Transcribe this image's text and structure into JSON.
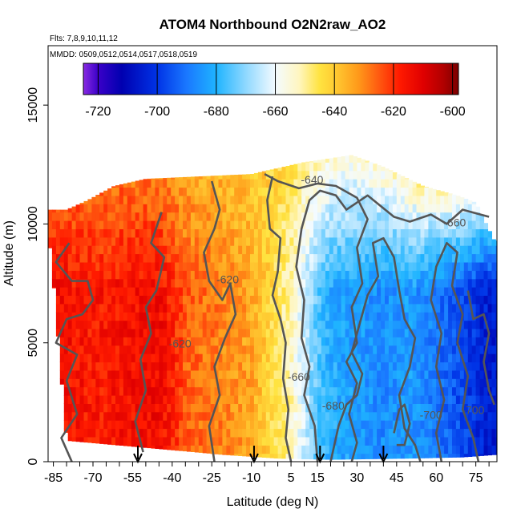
{
  "chart_data": {
    "type": "heatmap",
    "title": "ATOM4 Northbound O2N2raw_AO2",
    "subtitle_flights": "Flts: 7,8,9,10,11,12",
    "subtitle_dates": "MMDD: 0509,0512,0514,0517,0518,0519",
    "xlabel": "Latitude (deg N)",
    "ylabel": "Altitude (m)",
    "xlim": [
      -87,
      83
    ],
    "ylim": [
      0,
      17500
    ],
    "x_ticks": [
      -85,
      -70,
      -55,
      -40,
      -25,
      -10,
      5,
      15,
      30,
      45,
      60,
      75
    ],
    "x_tick_labels": [
      "-85",
      "-70",
      "-55",
      "-40",
      "-25",
      "-10",
      "5",
      "15",
      "30",
      "45",
      "60",
      "75"
    ],
    "y_ticks": [
      0,
      5000,
      10000,
      15000
    ],
    "y_tick_labels": [
      "0",
      "5000",
      "10000",
      "15000"
    ],
    "colorbar": {
      "min": -725,
      "max": -598,
      "ticks": [
        -720,
        -700,
        -680,
        -660,
        -640,
        -620,
        -600
      ],
      "tick_labels": [
        "-720",
        "-700",
        "-680",
        "-660",
        "-640",
        "-620",
        "-600"
      ],
      "stops": [
        {
          "v": -725,
          "c": "#8a2be2"
        },
        {
          "v": -720,
          "c": "#3a00c8"
        },
        {
          "v": -712,
          "c": "#0000b0"
        },
        {
          "v": -700,
          "c": "#0033e6"
        },
        {
          "v": -690,
          "c": "#1a78ff"
        },
        {
          "v": -680,
          "c": "#1fb4ff"
        },
        {
          "v": -670,
          "c": "#8fd8ff"
        },
        {
          "v": -660,
          "c": "#f4fbff"
        },
        {
          "v": -652,
          "c": "#fff6c0"
        },
        {
          "v": -645,
          "c": "#ffe340"
        },
        {
          "v": -640,
          "c": "#ffcc33"
        },
        {
          "v": -632,
          "c": "#ff9a1a"
        },
        {
          "v": -625,
          "c": "#ff5a10"
        },
        {
          "v": -618,
          "c": "#ff1a00"
        },
        {
          "v": -610,
          "c": "#e00000"
        },
        {
          "v": -603,
          "c": "#b00000"
        },
        {
          "v": -598,
          "c": "#7a0000"
        }
      ]
    },
    "profile_markers_lat": [
      -53,
      -9,
      16,
      40
    ],
    "contour_labels": [
      {
        "text": "-640",
        "lat": 13,
        "alt": 11700
      },
      {
        "text": "-660",
        "lat": 67,
        "alt": 9900
      },
      {
        "text": "-660",
        "lat": 8,
        "alt": 3400
      },
      {
        "text": "-680",
        "lat": 21,
        "alt": 2200
      },
      {
        "text": "-620",
        "lat": -19,
        "alt": 7500
      },
      {
        "text": "-620",
        "lat": -37,
        "alt": 4800
      },
      {
        "text": "-700",
        "lat": 58,
        "alt": 1800
      },
      {
        "text": "-700",
        "lat": 74,
        "alt": 2000
      }
    ],
    "field_profile": [
      {
        "lat": -85,
        "value": -614
      },
      {
        "lat": -70,
        "value": -617
      },
      {
        "lat": -55,
        "value": -615
      },
      {
        "lat": -45,
        "value": -614
      },
      {
        "lat": -40,
        "value": -618
      },
      {
        "lat": -35,
        "value": -625
      },
      {
        "lat": -25,
        "value": -628
      },
      {
        "lat": -20,
        "value": -630
      },
      {
        "lat": -10,
        "value": -634
      },
      {
        "lat": -5,
        "value": -640
      },
      {
        "lat": 5,
        "value": -652
      },
      {
        "lat": 10,
        "value": -664
      },
      {
        "lat": 15,
        "value": -675
      },
      {
        "lat": 20,
        "value": -681
      },
      {
        "lat": 30,
        "value": -684
      },
      {
        "lat": 40,
        "value": -687
      },
      {
        "lat": 50,
        "value": -684
      },
      {
        "lat": 60,
        "value": -690
      },
      {
        "lat": 70,
        "value": -697
      },
      {
        "lat": 80,
        "value": -705
      }
    ],
    "upper_field_profile": [
      {
        "lat": -85,
        "value": -632
      },
      {
        "lat": -60,
        "value": -632
      },
      {
        "lat": -30,
        "value": -638
      },
      {
        "lat": 0,
        "value": -642
      },
      {
        "lat": 15,
        "value": -648
      },
      {
        "lat": 30,
        "value": -650
      },
      {
        "lat": 45,
        "value": -640
      },
      {
        "lat": 60,
        "value": -630
      },
      {
        "lat": 80,
        "value": -628
      }
    ],
    "coverage_top": [
      {
        "lat": -86,
        "alt": 10600
      },
      {
        "lat": -80,
        "alt": 10600
      },
      {
        "lat": -72,
        "alt": 11000
      },
      {
        "lat": -62,
        "alt": 11600
      },
      {
        "lat": -50,
        "alt": 11900
      },
      {
        "lat": -30,
        "alt": 12000
      },
      {
        "lat": -10,
        "alt": 12100
      },
      {
        "lat": 10,
        "alt": 12600
      },
      {
        "lat": 28,
        "alt": 12900
      },
      {
        "lat": 40,
        "alt": 12400
      },
      {
        "lat": 55,
        "alt": 11600
      },
      {
        "lat": 68,
        "alt": 11200
      },
      {
        "lat": 75,
        "alt": 10900
      },
      {
        "lat": 82,
        "alt": 9300
      }
    ],
    "coverage_bottom": [
      {
        "lat": -86,
        "alt": 9000
      },
      {
        "lat": -80,
        "alt": 900
      },
      {
        "lat": -60,
        "alt": 700
      },
      {
        "lat": -40,
        "alt": 500
      },
      {
        "lat": -20,
        "alt": 300
      },
      {
        "lat": 0,
        "alt": 150
      },
      {
        "lat": 20,
        "alt": 100
      },
      {
        "lat": 50,
        "alt": 150
      },
      {
        "lat": 70,
        "alt": 200
      },
      {
        "lat": 82,
        "alt": 300
      }
    ],
    "contours": [
      {
        "level": -640,
        "points": [
          [
            -5,
            12100
          ],
          [
            0,
            11800
          ],
          [
            8,
            11500
          ],
          [
            15,
            11700
          ],
          [
            22,
            11600
          ],
          [
            30,
            11100
          ],
          [
            34,
            10200
          ],
          [
            30,
            9000
          ],
          [
            32,
            7500
          ],
          [
            28,
            6500
          ],
          [
            30,
            5000
          ],
          [
            26,
            4200
          ],
          [
            30,
            3300
          ],
          [
            27,
            2000
          ],
          [
            30,
            800
          ],
          [
            28,
            0
          ]
        ]
      },
      {
        "level": -660,
        "points": [
          [
            15,
            0
          ],
          [
            14,
            1500
          ],
          [
            10,
            2800
          ],
          [
            12,
            4000
          ],
          [
            9,
            5200
          ],
          [
            10,
            6800
          ],
          [
            7,
            8200
          ],
          [
            9,
            9800
          ],
          [
            12,
            11000
          ],
          [
            16,
            11400
          ],
          [
            22,
            11200
          ],
          [
            26,
            10600
          ],
          [
            34,
            11200
          ],
          [
            44,
            10300
          ],
          [
            50,
            10100
          ],
          [
            58,
            10400
          ],
          [
            64,
            10000
          ],
          [
            70,
            10600
          ],
          [
            80,
            10300
          ]
        ]
      },
      {
        "level": -660,
        "points": [
          [
            -2,
            12000
          ],
          [
            -4,
            11000
          ],
          [
            -3,
            9800
          ],
          [
            1,
            9400
          ],
          [
            0,
            8000
          ],
          [
            -2,
            7000
          ],
          [
            1,
            6000
          ],
          [
            3,
            5000
          ],
          [
            2,
            3500
          ],
          [
            4,
            2200
          ],
          [
            3,
            1000
          ],
          [
            5,
            0
          ]
        ]
      },
      {
        "level": -620,
        "points": [
          [
            -25,
            11800
          ],
          [
            -22,
            10600
          ],
          [
            -24,
            9800
          ],
          [
            -28,
            8800
          ],
          [
            -26,
            7600
          ],
          [
            -21,
            6800
          ],
          [
            -18,
            7500
          ],
          [
            -16,
            6200
          ],
          [
            -20,
            5200
          ],
          [
            -24,
            4000
          ],
          [
            -22,
            2800
          ],
          [
            -26,
            1500
          ],
          [
            -24,
            0
          ]
        ]
      },
      {
        "level": -620,
        "points": [
          [
            -44,
            10500
          ],
          [
            -48,
            9200
          ],
          [
            -43,
            8600
          ],
          [
            -46,
            7200
          ],
          [
            -50,
            6500
          ],
          [
            -48,
            5400
          ],
          [
            -52,
            4300
          ],
          [
            -50,
            3000
          ],
          [
            -54,
            1700
          ],
          [
            -51,
            400
          ]
        ]
      },
      {
        "level": -620,
        "points": [
          [
            -79,
            9200
          ],
          [
            -84,
            8400
          ],
          [
            -78,
            7600
          ],
          [
            -72,
            7600
          ],
          [
            -70,
            6800
          ],
          [
            -74,
            6200
          ],
          [
            -80,
            6000
          ],
          [
            -84,
            5000
          ],
          [
            -76,
            4500
          ],
          [
            -80,
            3400
          ],
          [
            -76,
            2000
          ],
          [
            -82,
            1000
          ],
          [
            -78,
            0
          ]
        ]
      },
      {
        "level": -680,
        "points": [
          [
            20,
            0
          ],
          [
            23,
            1500
          ],
          [
            26,
            2400
          ],
          [
            30,
            2800
          ],
          [
            32,
            3700
          ],
          [
            28,
            4600
          ],
          [
            31,
            5800
          ],
          [
            34,
            7000
          ],
          [
            38,
            7800
          ],
          [
            36,
            9200
          ],
          [
            40,
            9400
          ],
          [
            44,
            8600
          ],
          [
            46,
            7200
          ],
          [
            48,
            6000
          ],
          [
            52,
            5200
          ],
          [
            50,
            4000
          ],
          [
            46,
            2800
          ],
          [
            48,
            1400
          ],
          [
            52,
            700
          ],
          [
            54,
            0
          ]
        ]
      },
      {
        "level": -700,
        "points": [
          [
            62,
            0
          ],
          [
            60,
            1200
          ],
          [
            63,
            2600
          ],
          [
            60,
            4000
          ],
          [
            62,
            5400
          ],
          [
            58,
            6800
          ],
          [
            60,
            8200
          ],
          [
            64,
            9200
          ],
          [
            68,
            8800
          ],
          [
            66,
            7400
          ],
          [
            70,
            6200
          ],
          [
            68,
            5000
          ],
          [
            72,
            3600
          ],
          [
            70,
            2200
          ],
          [
            74,
            1000
          ],
          [
            76,
            0
          ]
        ]
      },
      {
        "level": -680,
        "points": [
          [
            44,
            1200
          ],
          [
            46,
            2200
          ],
          [
            48,
            2400
          ],
          [
            50,
            1600
          ],
          [
            48,
            700
          ],
          [
            45,
            700
          ]
        ]
      },
      {
        "level": -700,
        "points": [
          [
            72,
            7200
          ],
          [
            74,
            6000
          ],
          [
            78,
            6200
          ],
          [
            80,
            5400
          ],
          [
            78,
            4200
          ],
          [
            80,
            3000
          ],
          [
            82,
            2400
          ]
        ]
      }
    ]
  }
}
